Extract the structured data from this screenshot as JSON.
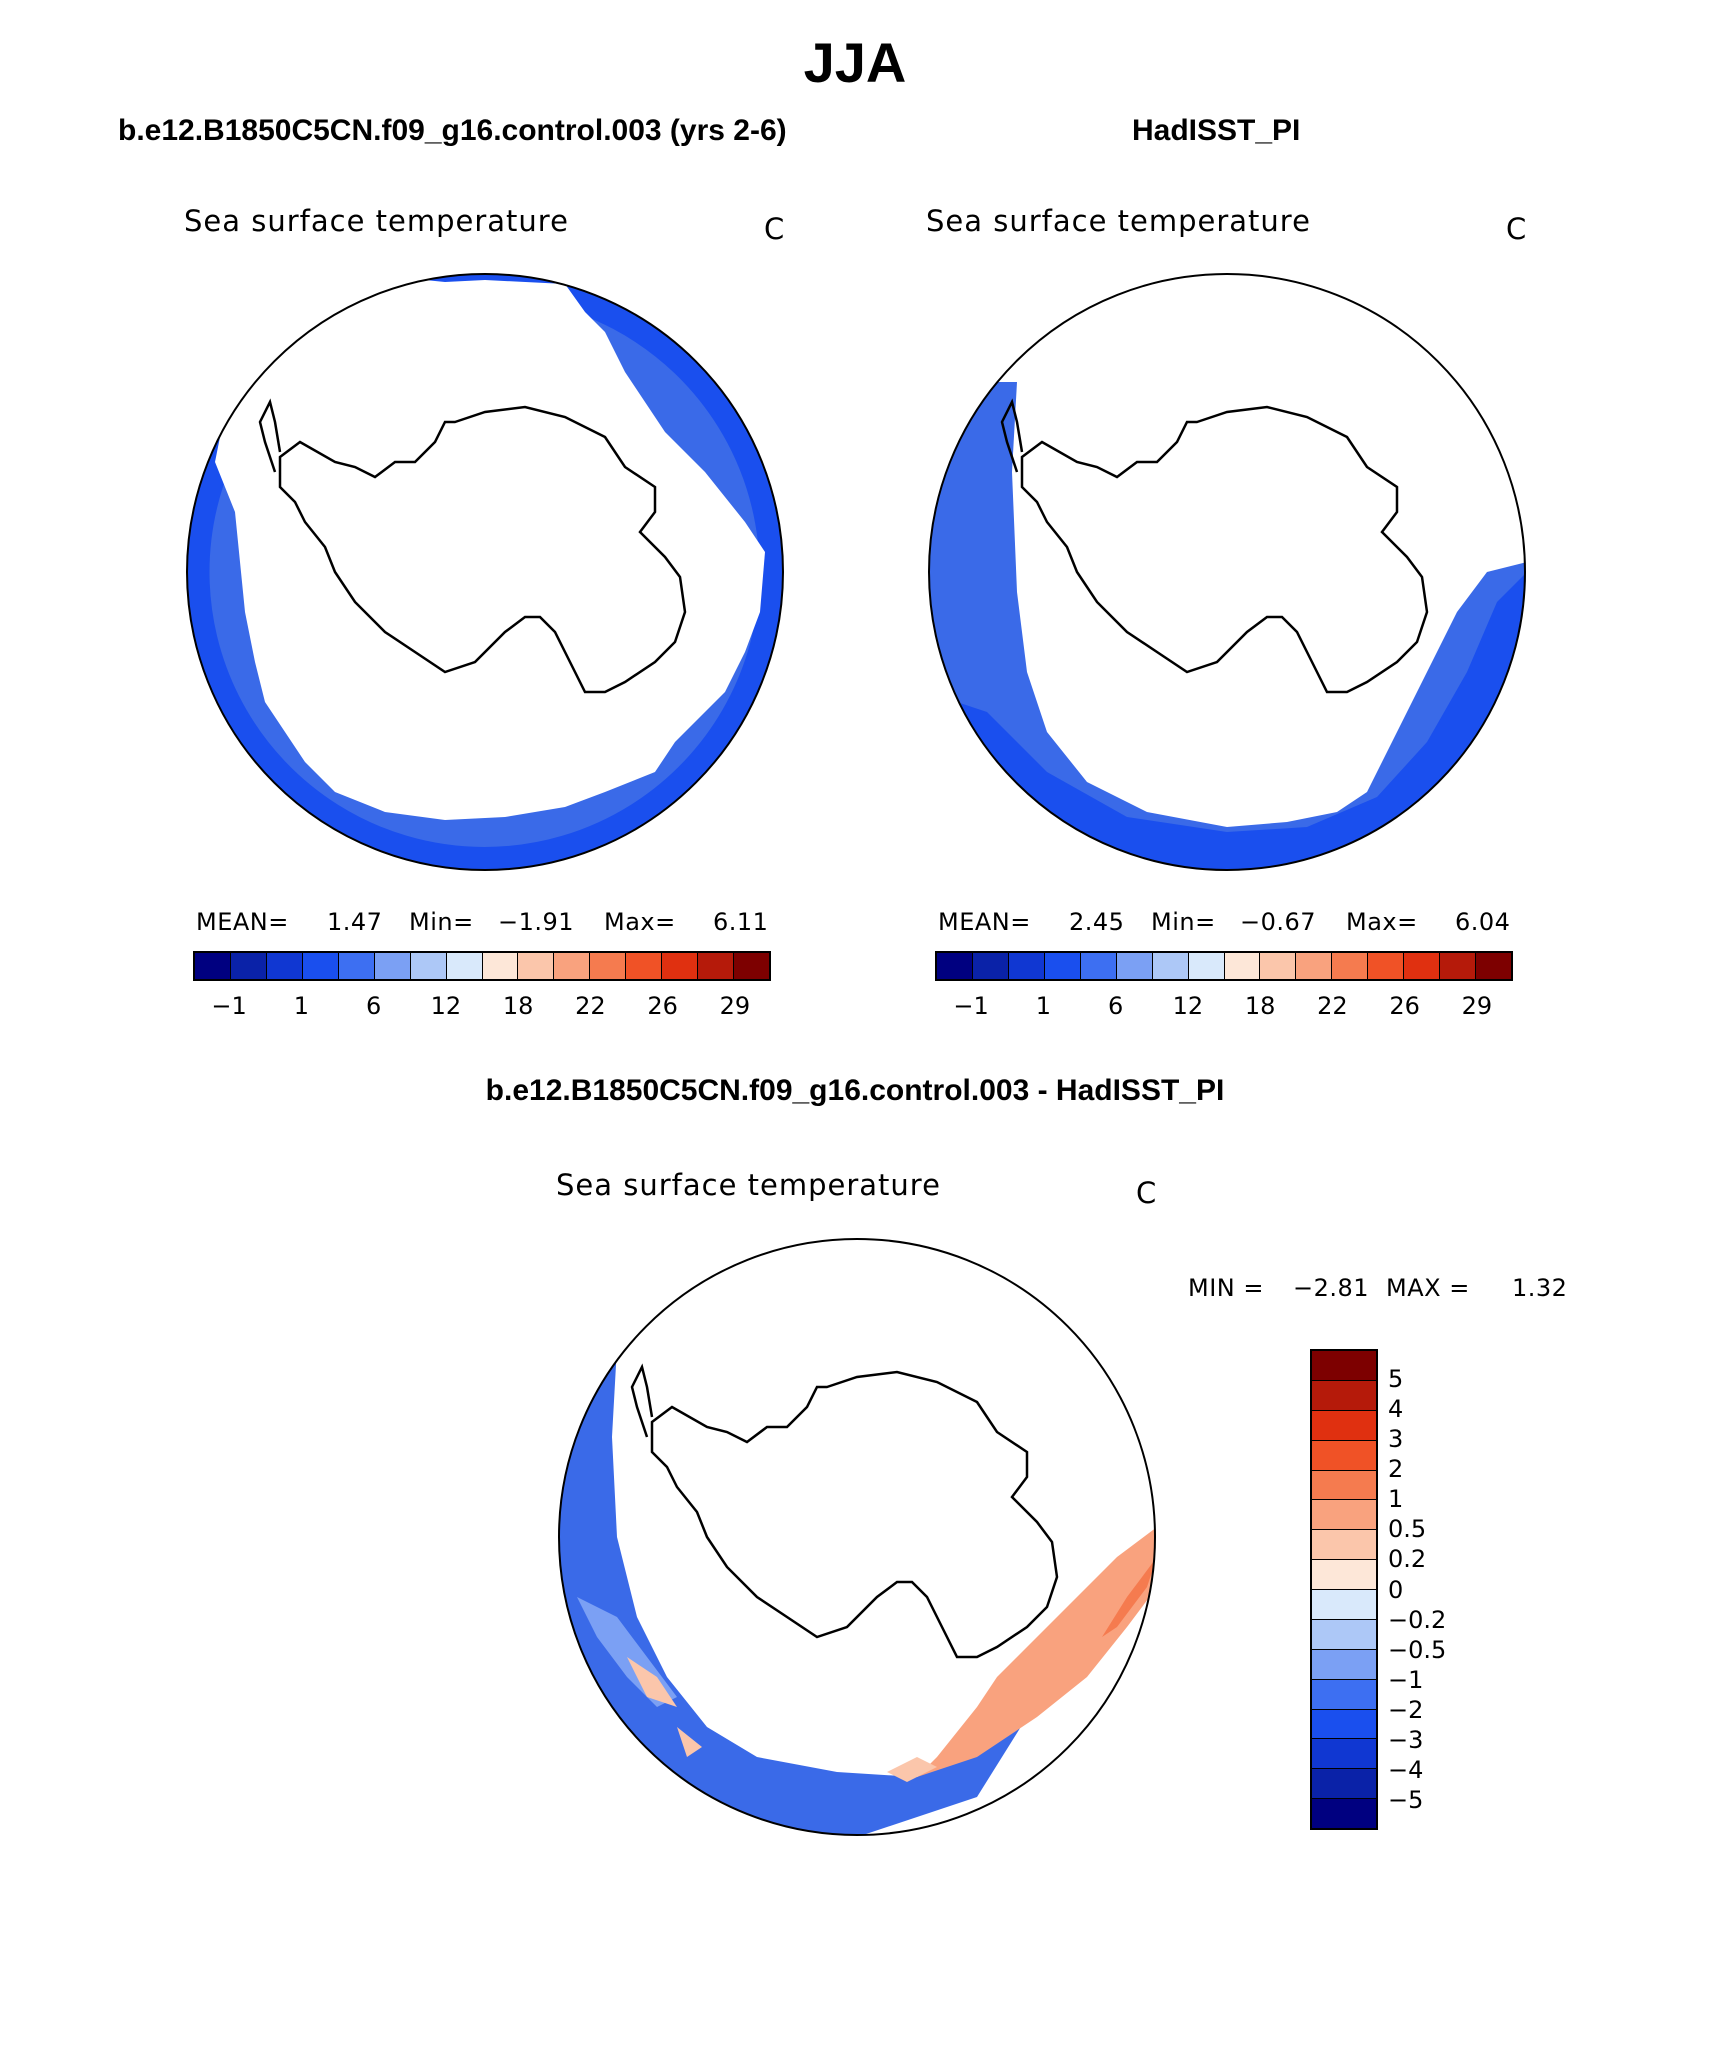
{
  "page_title": "JJA",
  "panels": [
    {
      "id": "model",
      "header": "b.e12.B1850C5CN.f09_g16.control.003 (yrs 2-6)",
      "variable": "Sea surface temperature",
      "units": "C",
      "stats": {
        "mean_label": "MEAN=",
        "mean": "1.47",
        "min_label": "Min=",
        "min": "−1.91",
        "max_label": "Max=",
        "max": "6.11"
      },
      "colorbar_labels": [
        "−1",
        "1",
        "6",
        "12",
        "18",
        "22",
        "26",
        "29"
      ]
    },
    {
      "id": "obs",
      "header": "HadISST_PI",
      "variable": "Sea surface temperature",
      "units": "C",
      "stats": {
        "mean_label": "MEAN=",
        "mean": "2.45",
        "min_label": "Min=",
        "min": "−0.67",
        "max_label": "Max=",
        "max": "6.04"
      },
      "colorbar_labels": [
        "−1",
        "1",
        "6",
        "12",
        "18",
        "22",
        "26",
        "29"
      ]
    }
  ],
  "diff_panel": {
    "header": "b.e12.B1850C5CN.f09_g16.control.003 - HadISST_PI",
    "variable": "Sea surface temperature",
    "units": "C",
    "stats": {
      "min_label": "MIN =",
      "min": "−2.81",
      "max_label": "MAX =",
      "max": "1.32"
    },
    "colorbar_labels": [
      "5",
      "4",
      "3",
      "2",
      "1",
      "0.5",
      "0.2",
      "0",
      "−0.2",
      "−0.5",
      "−1",
      "−2",
      "−3",
      "−4",
      "−5"
    ]
  },
  "colors": {
    "abs_scale": [
      "#000080",
      "#0a22a8",
      "#1037d2",
      "#1a4fee",
      "#3d6ff2",
      "#7ba0f4",
      "#adc8f7",
      "#d9e9fb",
      "#fde7d8",
      "#fbc6ab",
      "#f9a27e",
      "#f57b4f",
      "#f05226",
      "#e03010",
      "#b51a0a",
      "#7d0000"
    ],
    "diff_scale": [
      "#7d0000",
      "#b51a0a",
      "#e03010",
      "#f05226",
      "#f57b4f",
      "#f9a27e",
      "#fbc6ab",
      "#fde7d8",
      "#d9e9fb",
      "#adc8f7",
      "#7ba0f4",
      "#3d6ff2",
      "#1a4fee",
      "#1037d2",
      "#0a22a8",
      "#000080"
    ]
  }
}
